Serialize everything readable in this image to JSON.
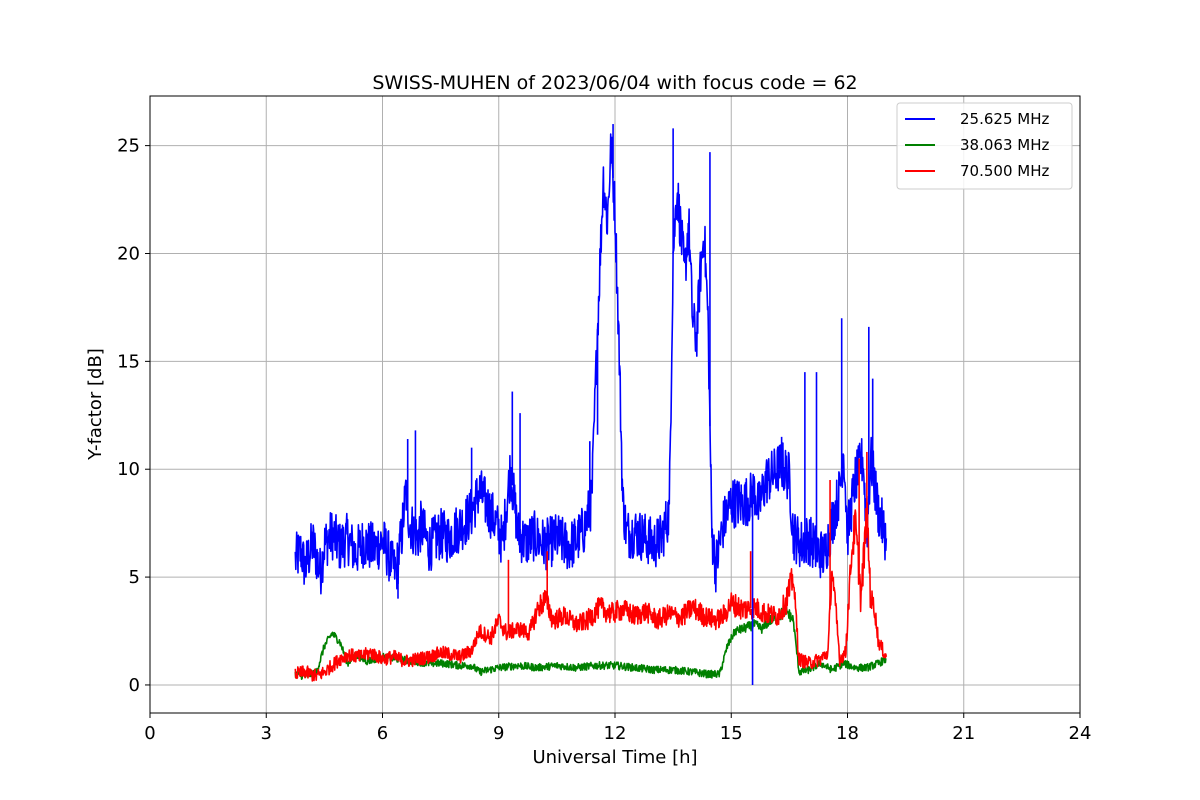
{
  "chart_data": {
    "type": "line",
    "title": "SWISS-MUHEN of 2023/06/04 with focus code = 62",
    "xlabel": "Universal Time [h]",
    "ylabel": "Y-factor [dB]",
    "xlim": [
      0,
      24
    ],
    "ylim": [
      -1.3,
      27.3
    ],
    "xticks": [
      "0",
      "3",
      "6",
      "9",
      "12",
      "15",
      "18",
      "21",
      "24"
    ],
    "yticks": [
      "0",
      "5",
      "10",
      "15",
      "20",
      "25"
    ],
    "grid": true,
    "legend_position": "top-right",
    "series": [
      {
        "name": "25.625 MHz",
        "color": "#0000ff",
        "x": [
          3.75,
          3.9,
          4.0,
          4.2,
          4.4,
          4.5,
          4.7,
          4.9,
          5.1,
          5.3,
          5.5,
          5.8,
          6.0,
          6.2,
          6.35,
          6.5,
          6.6,
          6.7,
          6.9,
          7.0,
          7.2,
          7.5,
          7.7,
          7.9,
          8.1,
          8.3,
          8.5,
          8.7,
          8.9,
          9.1,
          9.3,
          9.4,
          9.5,
          9.7,
          9.9,
          10.2,
          10.5,
          10.8,
          11.0,
          11.2,
          11.4,
          11.5,
          11.6,
          11.7,
          11.8,
          11.9,
          12.0,
          12.1,
          12.2,
          12.3,
          12.5,
          12.8,
          13.0,
          13.2,
          13.4,
          13.5,
          13.6,
          13.7,
          13.8,
          13.9,
          14.0,
          14.1,
          14.2,
          14.3,
          14.4,
          14.5,
          14.6,
          14.8,
          15.0,
          15.3,
          15.5,
          15.6,
          15.7,
          15.9,
          16.1,
          16.3,
          16.5,
          16.6,
          16.8,
          17.0,
          17.2,
          17.4,
          17.6,
          17.8,
          17.9,
          18.0,
          18.2,
          18.4,
          18.5,
          18.6,
          18.8,
          19.0
        ],
        "y": [
          5.8,
          6.2,
          5.4,
          6.6,
          5.2,
          6.5,
          7.0,
          6.4,
          6.8,
          6.1,
          6.6,
          6.3,
          6.7,
          5.8,
          5.2,
          7.0,
          9.0,
          7.5,
          6.8,
          7.4,
          6.4,
          7.0,
          6.8,
          7.2,
          7.5,
          8.0,
          9.0,
          8.3,
          7.6,
          6.6,
          10.0,
          8.5,
          7.0,
          6.6,
          6.9,
          6.5,
          6.8,
          6.4,
          6.7,
          7.2,
          8.5,
          14.0,
          19.0,
          23.5,
          21.5,
          25.0,
          22.0,
          16.0,
          8.5,
          7.0,
          7.1,
          6.8,
          6.5,
          6.8,
          8.0,
          20.0,
          23.0,
          21.0,
          19.0,
          21.5,
          17.0,
          16.0,
          19.0,
          21.0,
          17.0,
          7.0,
          5.5,
          7.5,
          8.5,
          8.4,
          8.7,
          9.0,
          8.2,
          9.5,
          9.8,
          10.2,
          9.6,
          7.0,
          6.5,
          6.8,
          6.2,
          6.0,
          7.5,
          9.0,
          11.0,
          7.0,
          9.5,
          10.5,
          7.0,
          10.5,
          8.0,
          6.8
        ]
      },
      {
        "name": "38.063 MHz",
        "color": "#008000",
        "x": [
          3.75,
          4.0,
          4.3,
          4.5,
          4.7,
          4.9,
          5.1,
          5.3,
          5.6,
          6.0,
          6.4,
          6.8,
          7.2,
          7.6,
          8.0,
          8.3,
          8.5,
          9.0,
          9.5,
          10.0,
          10.5,
          11.0,
          11.5,
          12.0,
          12.5,
          13.0,
          13.5,
          14.0,
          14.4,
          14.7,
          14.9,
          15.1,
          15.3,
          15.6,
          15.8,
          16.0,
          16.2,
          16.4,
          16.6,
          16.75,
          17.0,
          17.3,
          17.6,
          17.9,
          18.2,
          18.5,
          18.8,
          19.0
        ],
        "y": [
          0.5,
          0.4,
          0.6,
          1.8,
          2.4,
          2.0,
          1.0,
          1.4,
          1.1,
          1.3,
          1.2,
          1.1,
          1.0,
          1.0,
          0.9,
          0.9,
          0.6,
          0.8,
          0.9,
          0.8,
          0.9,
          0.8,
          0.9,
          0.9,
          0.8,
          0.7,
          0.7,
          0.6,
          0.5,
          0.5,
          1.8,
          2.5,
          2.6,
          2.8,
          2.6,
          3.0,
          3.1,
          3.5,
          3.0,
          0.6,
          0.7,
          1.0,
          0.7,
          1.0,
          0.8,
          0.8,
          1.0,
          1.2
        ]
      },
      {
        "name": "70.500 MHz",
        "color": "#ff0000",
        "x": [
          3.75,
          4.0,
          4.3,
          4.5,
          4.7,
          4.9,
          5.1,
          5.4,
          5.7,
          6.0,
          6.3,
          6.6,
          6.9,
          7.2,
          7.5,
          7.8,
          8.0,
          8.3,
          8.5,
          8.8,
          9.0,
          9.2,
          9.5,
          9.8,
          10.0,
          10.2,
          10.4,
          10.7,
          11.0,
          11.3,
          11.6,
          11.9,
          12.2,
          12.5,
          12.8,
          13.1,
          13.4,
          13.7,
          14.0,
          14.3,
          14.6,
          14.8,
          15.0,
          15.3,
          15.6,
          15.9,
          16.2,
          16.4,
          16.6,
          16.75,
          17.0,
          17.3,
          17.5,
          17.6,
          17.8,
          17.95,
          18.1,
          18.2,
          18.35,
          18.5,
          18.6,
          18.7,
          18.8,
          19.0
        ],
        "y": [
          0.5,
          0.6,
          0.4,
          0.6,
          0.9,
          1.2,
          1.4,
          1.3,
          1.5,
          1.2,
          1.3,
          1.1,
          1.2,
          1.3,
          1.5,
          1.4,
          1.3,
          1.6,
          2.5,
          2.2,
          3.0,
          2.4,
          2.6,
          2.4,
          3.5,
          4.0,
          3.0,
          3.2,
          2.8,
          3.0,
          3.6,
          3.3,
          3.5,
          3.2,
          3.4,
          3.0,
          3.3,
          3.1,
          3.6,
          3.2,
          3.0,
          3.2,
          3.8,
          3.5,
          3.6,
          3.3,
          3.2,
          3.8,
          5.0,
          1.2,
          1.0,
          1.2,
          1.5,
          5.5,
          1.2,
          1.5,
          6.0,
          7.5,
          4.0,
          8.0,
          4.0,
          3.5,
          2.0,
          1.3
        ]
      }
    ],
    "spikes": [
      {
        "series": 0,
        "x": 6.65,
        "y": 11.4
      },
      {
        "series": 0,
        "x": 6.85,
        "y": 11.8
      },
      {
        "series": 0,
        "x": 8.3,
        "y": 11.0
      },
      {
        "series": 0,
        "x": 9.35,
        "y": 13.6
      },
      {
        "series": 0,
        "x": 9.55,
        "y": 12.6
      },
      {
        "series": 0,
        "x": 11.35,
        "y": 11.3
      },
      {
        "series": 0,
        "x": 11.55,
        "y": 11.6
      },
      {
        "series": 0,
        "x": 11.95,
        "y": 26.0
      },
      {
        "series": 0,
        "x": 13.5,
        "y": 25.8
      },
      {
        "series": 0,
        "x": 14.45,
        "y": 24.7
      },
      {
        "series": 0,
        "x": 16.3,
        "y": 11.5
      },
      {
        "series": 0,
        "x": 16.9,
        "y": 14.5
      },
      {
        "series": 0,
        "x": 17.2,
        "y": 14.5
      },
      {
        "series": 0,
        "x": 17.85,
        "y": 17.0
      },
      {
        "series": 0,
        "x": 18.55,
        "y": 16.6
      },
      {
        "series": 0,
        "x": 18.65,
        "y": 14.2
      },
      {
        "series": 0,
        "x": 15.55,
        "y": 0.0
      },
      {
        "series": 0,
        "x": 6.4,
        "y": 4.0
      },
      {
        "series": 2,
        "x": 17.55,
        "y": 9.5
      },
      {
        "series": 2,
        "x": 18.3,
        "y": 10.5
      },
      {
        "series": 2,
        "x": 18.5,
        "y": 10.8
      },
      {
        "series": 2,
        "x": 15.5,
        "y": 6.2
      },
      {
        "series": 2,
        "x": 10.25,
        "y": 6.2
      },
      {
        "series": 2,
        "x": 9.25,
        "y": 5.8
      }
    ]
  }
}
